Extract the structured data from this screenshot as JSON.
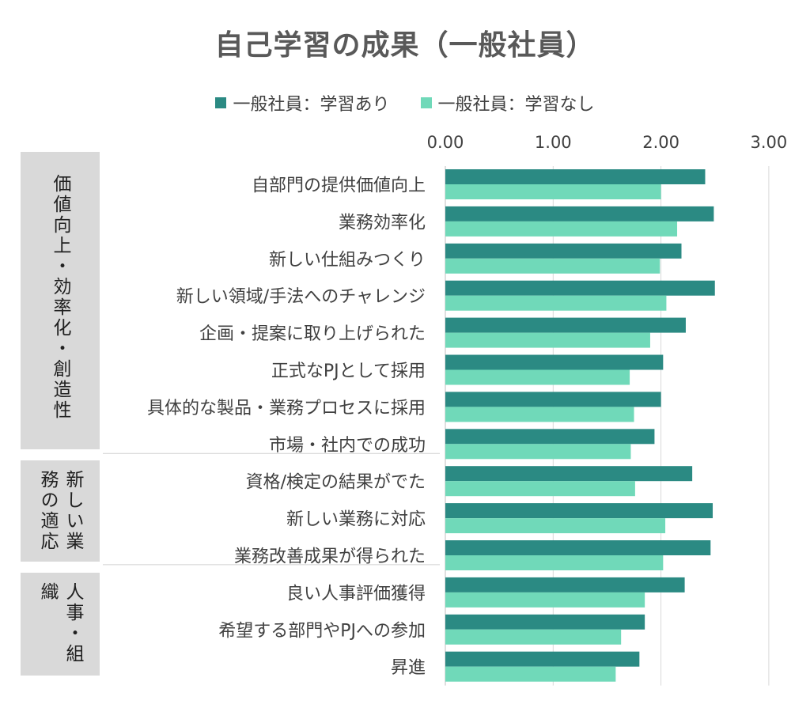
{
  "chart_data": {
    "type": "bar",
    "orientation": "horizontal",
    "title": "自己学習の成果（一般社員）",
    "xlim": [
      0,
      3
    ],
    "xticks": [
      "0.00",
      "1.00",
      "2.00",
      "3.00"
    ],
    "grid": true,
    "legend_position": "top",
    "categories": [
      "自部門の提供価値向上",
      "業務効率化",
      "新しい仕組みつくり",
      "新しい領域/手法へのチャレンジ",
      "企画・提案に取り上げられた",
      "正式なPJとして採用",
      "具体的な製品・業務プロセスに採用",
      "市場・社内での成功",
      "資格/検定の結果がでた",
      "新しい業務に対応",
      "業務改善成果が得られた",
      "良い人事評価獲得",
      "希望する部門やPJへの参加",
      "昇進"
    ],
    "series": [
      {
        "name": "一般社員：学習あり",
        "color": "#2b8a83",
        "values": [
          2.41,
          2.49,
          2.19,
          2.5,
          2.23,
          2.02,
          2.0,
          1.94,
          2.29,
          2.48,
          2.46,
          2.22,
          1.85,
          1.8
        ]
      },
      {
        "name": "一般社員：学習なし",
        "color": "#70d9b9",
        "values": [
          2.0,
          2.15,
          1.99,
          2.05,
          1.9,
          1.71,
          1.75,
          1.72,
          1.76,
          2.04,
          2.02,
          1.85,
          1.63,
          1.58
        ]
      }
    ],
    "groups": [
      {
        "columns": [
          "価値向上・効率化・創造性"
        ],
        "start": 0,
        "end": 7
      },
      {
        "columns": [
          "新しい業",
          "務の適応"
        ],
        "start": 8,
        "end": 10
      },
      {
        "columns": [
          "人事・組",
          "織"
        ],
        "start": 11,
        "end": 13
      }
    ]
  }
}
